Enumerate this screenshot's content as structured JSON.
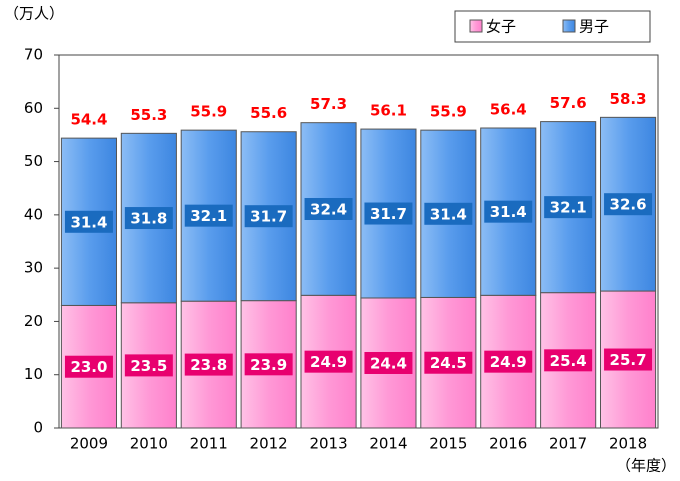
{
  "chart_data": {
    "type": "stacked_bar",
    "y_axis_label": "（万人）",
    "x_axis_label": "（年度）",
    "categories": [
      "2009",
      "2010",
      "2011",
      "2012",
      "2013",
      "2014",
      "2015",
      "2016",
      "2017",
      "2018"
    ],
    "series": [
      {
        "name": "女子",
        "color": "#ff99d6",
        "label_color": "#e8006f",
        "values": [
          23.0,
          23.5,
          23.8,
          23.9,
          24.9,
          24.4,
          24.5,
          24.9,
          25.4,
          25.7
        ],
        "value_labels": [
          "23.0",
          "23.5",
          "23.8",
          "23.9",
          "24.9",
          "24.4",
          "24.5",
          "24.9",
          "25.4",
          "25.7"
        ]
      },
      {
        "name": "男子",
        "color": "#5a9ded",
        "label_color": "#1a6bbf",
        "values": [
          31.4,
          31.8,
          32.1,
          31.7,
          32.4,
          31.7,
          31.4,
          31.4,
          32.1,
          32.6
        ]
      }
    ],
    "totals": [
      54.4,
      55.3,
      55.9,
      55.6,
      57.3,
      56.1,
      55.9,
      56.4,
      57.6,
      58.3
    ],
    "totals_color": "#ff0000",
    "ylim": [
      0,
      70
    ],
    "yticks": [
      0,
      10,
      20,
      30,
      40,
      50,
      60,
      70
    ],
    "legend": "top-right"
  }
}
